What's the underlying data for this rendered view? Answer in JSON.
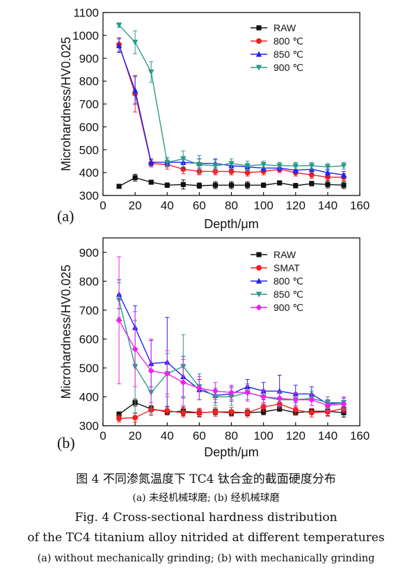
{
  "chart_data": [
    {
      "type": "line",
      "panel": "(a)",
      "xlabel": "Depth/μm",
      "ylabel": "Microhardness/HV0.025",
      "xlim": [
        0,
        160
      ],
      "ylim": [
        300,
        1100
      ],
      "xticks": [
        0,
        20,
        40,
        60,
        80,
        100,
        120,
        140,
        160
      ],
      "yticks": [
        300,
        400,
        500,
        600,
        700,
        800,
        900,
        1000,
        1100
      ],
      "legend": "top-right",
      "grid": false,
      "x": [
        10,
        20,
        30,
        40,
        50,
        60,
        70,
        80,
        90,
        100,
        110,
        120,
        130,
        140,
        150
      ],
      "series": [
        {
          "name": "RAW",
          "color": "#111111",
          "marker": "square",
          "values": [
            340,
            378,
            358,
            345,
            348,
            343,
            345,
            345,
            345,
            345,
            355,
            343,
            352,
            348,
            345
          ],
          "errors": [
            8,
            15,
            8,
            10,
            20,
            12,
            15,
            15,
            15,
            10,
            8,
            10,
            10,
            15,
            15
          ]
        },
        {
          "name": "800 ℃",
          "color": "#ee2222",
          "marker": "circle",
          "values": [
            960,
            745,
            440,
            435,
            415,
            405,
            405,
            405,
            400,
            405,
            415,
            400,
            390,
            380,
            380
          ],
          "errors": [
            30,
            80,
            15,
            20,
            20,
            15,
            15,
            15,
            15,
            15,
            15,
            15,
            15,
            15,
            15
          ]
        },
        {
          "name": "850 ℃",
          "color": "#2222ee",
          "marker": "triangle-up",
          "values": [
            955,
            760,
            445,
            445,
            445,
            440,
            440,
            430,
            425,
            420,
            420,
            410,
            415,
            400,
            390
          ],
          "errors": [
            30,
            60,
            15,
            20,
            25,
            20,
            20,
            15,
            15,
            15,
            15,
            15,
            15,
            15,
            15
          ]
        },
        {
          "name": "900 ℃",
          "color": "#2a9a8a",
          "marker": "triangle-down",
          "values": [
            1045,
            970,
            840,
            445,
            460,
            435,
            430,
            440,
            430,
            435,
            430,
            430,
            430,
            425,
            430
          ],
          "errors": [
            10,
            50,
            45,
            20,
            35,
            40,
            25,
            20,
            20,
            15,
            15,
            15,
            15,
            15,
            15
          ]
        }
      ]
    },
    {
      "type": "line",
      "panel": "(b)",
      "xlabel": "Depth/μm",
      "ylabel": "Microhardness/HV0.025",
      "xlim": [
        0,
        160
      ],
      "ylim": [
        300,
        950
      ],
      "xticks": [
        0,
        20,
        40,
        60,
        80,
        100,
        120,
        140,
        160
      ],
      "yticks": [
        300,
        400,
        500,
        600,
        700,
        800,
        900
      ],
      "legend": "top-right",
      "grid": false,
      "x": [
        10,
        20,
        30,
        40,
        50,
        60,
        70,
        80,
        90,
        100,
        110,
        120,
        130,
        140,
        150
      ],
      "series": [
        {
          "name": "RAW",
          "color": "#111111",
          "marker": "square",
          "values": [
            340,
            380,
            358,
            348,
            350,
            345,
            348,
            345,
            345,
            348,
            358,
            345,
            350,
            350,
            345
          ],
          "errors": [
            8,
            12,
            10,
            10,
            15,
            12,
            10,
            10,
            10,
            10,
            8,
            8,
            10,
            15,
            15
          ]
        },
        {
          "name": "SMAT",
          "color": "#ee2222",
          "marker": "circle",
          "values": [
            325,
            328,
            355,
            352,
            345,
            345,
            348,
            348,
            345,
            365,
            375,
            355,
            345,
            348,
            360
          ],
          "errors": [
            12,
            15,
            15,
            15,
            15,
            15,
            15,
            15,
            15,
            15,
            15,
            15,
            15,
            15,
            15
          ]
        },
        {
          "name": "800 ℃",
          "color": "#2222ee",
          "marker": "triangle-up",
          "values": [
            755,
            640,
            515,
            520,
            470,
            425,
            405,
            410,
            435,
            420,
            420,
            410,
            410,
            375,
            380
          ],
          "errors": [
            50,
            75,
            80,
            155,
            70,
            35,
            25,
            25,
            25,
            30,
            55,
            30,
            25,
            15,
            15
          ]
        },
        {
          "name": "850 ℃",
          "color": "#2a9a8a",
          "marker": "triangle-down",
          "values": [
            735,
            505,
            415,
            480,
            505,
            435,
            400,
            400,
            415,
            400,
            390,
            390,
            395,
            380,
            380
          ],
          "errors": [
            60,
            160,
            80,
            70,
            110,
            45,
            30,
            30,
            25,
            25,
            25,
            25,
            25,
            20,
            20
          ]
        },
        {
          "name": "900 ℃",
          "color": "#ee22ee",
          "marker": "diamond",
          "values": [
            665,
            565,
            490,
            480,
            450,
            430,
            420,
            415,
            415,
            400,
            395,
            390,
            390,
            370,
            375
          ],
          "errors": [
            220,
            130,
            110,
            80,
            80,
            40,
            30,
            25,
            30,
            25,
            25,
            25,
            20,
            20,
            25
          ]
        }
      ]
    }
  ],
  "caption": {
    "zh_title": "图 4   不同渗氮温度下 TC4 钛合金的截面硬度分布",
    "zh_sub": "(a) 未经机械球磨; (b) 经机械球磨",
    "en_title": "Fig. 4   Cross-sectional hardness distribution",
    "en_line2": "of the TC4 titanium alloy nitrided at different temperatures",
    "en_sub": "(a)  without mechanically grinding;  (b)  with mechanically grinding"
  }
}
